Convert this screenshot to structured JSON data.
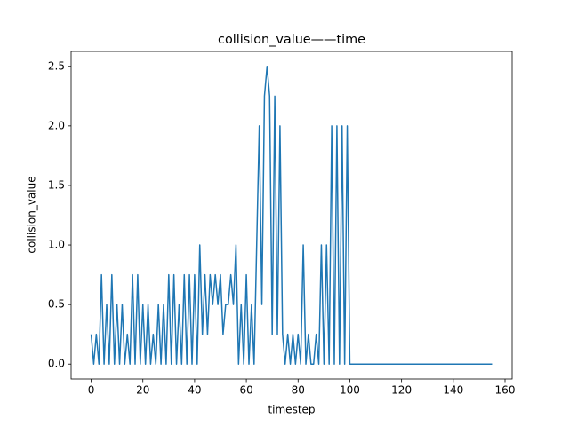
{
  "chart_data": {
    "type": "line",
    "title": "collision_value——time",
    "xlabel": "timestep",
    "ylabel": "collision_value",
    "color": "#1f77b4",
    "grid": false,
    "x": [
      0,
      1,
      2,
      3,
      4,
      5,
      6,
      7,
      8,
      9,
      10,
      11,
      12,
      13,
      14,
      15,
      16,
      17,
      18,
      19,
      20,
      21,
      22,
      23,
      24,
      25,
      26,
      27,
      28,
      29,
      30,
      31,
      32,
      33,
      34,
      35,
      36,
      37,
      38,
      39,
      40,
      41,
      42,
      43,
      44,
      45,
      46,
      47,
      48,
      49,
      50,
      51,
      52,
      53,
      54,
      55,
      56,
      57,
      58,
      59,
      60,
      61,
      62,
      63,
      64,
      65,
      66,
      67,
      68,
      69,
      70,
      71,
      72,
      73,
      74,
      75,
      76,
      77,
      78,
      79,
      80,
      81,
      82,
      83,
      84,
      85,
      86,
      87,
      88,
      89,
      90,
      91,
      92,
      93,
      94,
      95,
      96,
      97,
      98,
      99,
      100,
      101,
      102,
      103,
      104,
      105,
      106,
      107,
      108,
      109,
      110,
      111,
      112,
      113,
      114,
      115,
      116,
      117,
      118,
      119,
      120,
      121,
      122,
      123,
      124,
      125,
      126,
      127,
      128,
      129,
      130,
      131,
      132,
      133,
      134,
      135,
      136,
      137,
      138,
      139,
      140,
      141,
      142,
      143,
      144,
      145,
      146,
      147,
      148,
      149,
      150,
      151,
      152,
      153,
      154,
      155
    ],
    "values": [
      0.25,
      0,
      0.25,
      0,
      0.75,
      0,
      0.5,
      0,
      0.75,
      0,
      0.5,
      0,
      0.5,
      0,
      0.25,
      0,
      0.75,
      0,
      0.75,
      0,
      0.5,
      0,
      0.5,
      0,
      0.25,
      0,
      0.5,
      0,
      0.5,
      0,
      0.75,
      0,
      0.75,
      0,
      0.5,
      0,
      0.75,
      0,
      0.75,
      0,
      0.75,
      0,
      1,
      0.25,
      0.75,
      0.25,
      0.75,
      0.5,
      0.75,
      0.5,
      0.75,
      0.25,
      0.5,
      0.5,
      0.75,
      0.5,
      1,
      0,
      0.5,
      0,
      0.75,
      0,
      0.5,
      0,
      1,
      2,
      0.5,
      2.25,
      2.5,
      2.25,
      0.25,
      2.25,
      0.25,
      2,
      0.25,
      0,
      0.25,
      0,
      0.25,
      0,
      0.25,
      0,
      1,
      0,
      0.25,
      0,
      0,
      0.25,
      0,
      1,
      0,
      1,
      0,
      2,
      0,
      2,
      0,
      2,
      0,
      2,
      0,
      0,
      0,
      0,
      0,
      0,
      0,
      0,
      0,
      0,
      0,
      0,
      0,
      0,
      0,
      0,
      0,
      0,
      0,
      0,
      0,
      0,
      0,
      0,
      0,
      0,
      0,
      0,
      0,
      0,
      0,
      0,
      0,
      0,
      0,
      0,
      0,
      0,
      0,
      0,
      0,
      0,
      0,
      0,
      0,
      0,
      0,
      0,
      0,
      0,
      0,
      0,
      0,
      0,
      0,
      0
    ],
    "xlim": [
      -7.75,
      162.75
    ],
    "ylim": [
      -0.125,
      2.625
    ],
    "xticks": [
      0,
      20,
      40,
      60,
      80,
      100,
      120,
      140,
      160
    ],
    "yticks": [
      {
        "value": 0,
        "label": "0.0"
      },
      0.5,
      {
        "value": 1,
        "label": "1.0"
      },
      1.5,
      {
        "value": 2,
        "label": "2.0"
      },
      2.5
    ]
  }
}
